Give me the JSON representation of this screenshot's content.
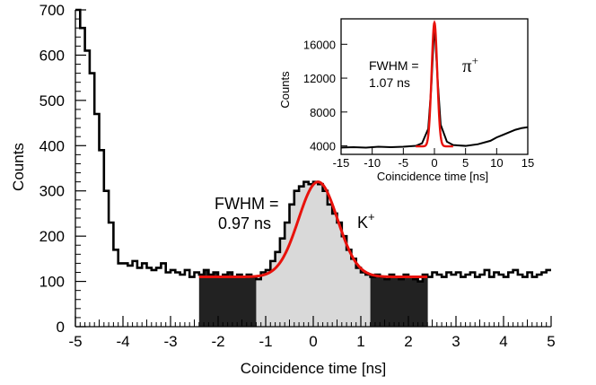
{
  "chart_data": [
    {
      "type": "bar",
      "subtype": "histogram-with-fit",
      "xlabel": "Coincidence time [ns]",
      "ylabel": "Counts",
      "xlim": [
        -5,
        5
      ],
      "ylim": [
        0,
        700
      ],
      "xticks": [
        "-5",
        "-4",
        "-3",
        "-2",
        "-1",
        "0",
        "1",
        "2",
        "3",
        "4",
        "5"
      ],
      "yticks": [
        "0",
        "100",
        "200",
        "300",
        "400",
        "500",
        "600",
        "700"
      ],
      "bin_width": 0.1,
      "x": [
        -4.95,
        -4.85,
        -4.75,
        -4.65,
        -4.55,
        -4.45,
        -4.35,
        -4.25,
        -4.15,
        -4.05,
        -3.95,
        -3.85,
        -3.75,
        -3.65,
        -3.55,
        -3.45,
        -3.35,
        -3.25,
        -3.15,
        -3.05,
        -2.95,
        -2.85,
        -2.75,
        -2.65,
        -2.55,
        -2.45,
        -2.35,
        -2.25,
        -2.15,
        -2.05,
        -1.95,
        -1.85,
        -1.75,
        -1.65,
        -1.55,
        -1.45,
        -1.35,
        -1.25,
        -1.15,
        -1.05,
        -0.95,
        -0.85,
        -0.75,
        -0.65,
        -0.55,
        -0.45,
        -0.35,
        -0.25,
        -0.15,
        -0.05,
        0.05,
        0.15,
        0.25,
        0.35,
        0.45,
        0.55,
        0.65,
        0.75,
        0.85,
        0.95,
        1.05,
        1.15,
        1.25,
        1.35,
        1.45,
        1.55,
        1.65,
        1.75,
        1.85,
        1.95,
        2.05,
        2.15,
        2.25,
        2.35,
        2.45,
        2.55,
        2.65,
        2.75,
        2.85,
        2.95,
        3.05,
        3.15,
        3.25,
        3.35,
        3.45,
        3.55,
        3.65,
        3.75,
        3.85,
        3.95,
        4.05,
        4.15,
        4.25,
        4.35,
        4.45,
        4.55,
        4.65,
        4.75,
        4.85,
        4.95
      ],
      "values": [
        700,
        660,
        610,
        560,
        470,
        390,
        300,
        230,
        170,
        140,
        140,
        135,
        145,
        130,
        140,
        130,
        125,
        130,
        140,
        120,
        125,
        120,
        115,
        125,
        110,
        120,
        115,
        125,
        115,
        120,
        110,
        115,
        120,
        110,
        115,
        110,
        115,
        110,
        105,
        120,
        125,
        145,
        165,
        195,
        230,
        270,
        300,
        310,
        320,
        315,
        320,
        315,
        300,
        270,
        250,
        230,
        200,
        170,
        150,
        130,
        120,
        115,
        110,
        115,
        110,
        105,
        115,
        110,
        105,
        115,
        110,
        105,
        100,
        115,
        110,
        120,
        115,
        110,
        120,
        115,
        120,
        110,
        115,
        120,
        110,
        115,
        125,
        110,
        120,
        115,
        110,
        120,
        125,
        115,
        110,
        120,
        110,
        115,
        120,
        125
      ],
      "sideband_ranges": [
        [
          -2.4,
          -1.2
        ],
        [
          1.2,
          2.4
        ]
      ],
      "signal_range": [
        -1.2,
        1.2
      ],
      "fit": {
        "type": "gaussian+constant",
        "x_range": [
          -2.4,
          2.4
        ],
        "mean": 0.1,
        "sigma": 0.41,
        "amplitude": 210,
        "baseline": 110,
        "color": "#e8120c"
      },
      "colors": {
        "sideband": "#222222",
        "signal": "#d9d9d9",
        "histogram": "#000000"
      },
      "annotations": [
        {
          "text": "FWHM ="
        },
        {
          "text": "0.97 ns"
        },
        {
          "text": "K",
          "sup": "+"
        }
      ]
    },
    {
      "type": "bar",
      "subtype": "histogram-with-fit",
      "inset": true,
      "xlabel": "Coincidence time [ns]",
      "ylabel": "Counts",
      "xlim": [
        -15,
        15
      ],
      "ylim": [
        3000,
        19000
      ],
      "xticks": [
        "-15",
        "-10",
        "-5",
        "0",
        "5",
        "10",
        "15"
      ],
      "yticks": [
        "4000",
        "8000",
        "12000",
        "16000"
      ],
      "x": [
        -15,
        -13,
        -11,
        -9,
        -7,
        -5,
        -3,
        -2,
        -1,
        -0.5,
        0,
        0.5,
        1,
        2,
        3,
        5,
        7,
        9,
        10,
        11,
        12,
        13,
        14,
        15
      ],
      "values": [
        3800,
        3850,
        3800,
        3900,
        3850,
        3900,
        4000,
        4300,
        6000,
        11000,
        18500,
        12000,
        6500,
        4500,
        4100,
        4000,
        4200,
        4600,
        5000,
        5300,
        5600,
        5900,
        6100,
        6200
      ],
      "fit": {
        "type": "gaussian+constant",
        "mean": 0.0,
        "sigma": 0.45,
        "amplitude": 14600,
        "baseline": 3950,
        "color": "#e8120c"
      },
      "annotations": [
        {
          "text": "FWHM ="
        },
        {
          "text": "1.07 ns"
        },
        {
          "text": "π",
          "sup": "+"
        }
      ]
    }
  ]
}
